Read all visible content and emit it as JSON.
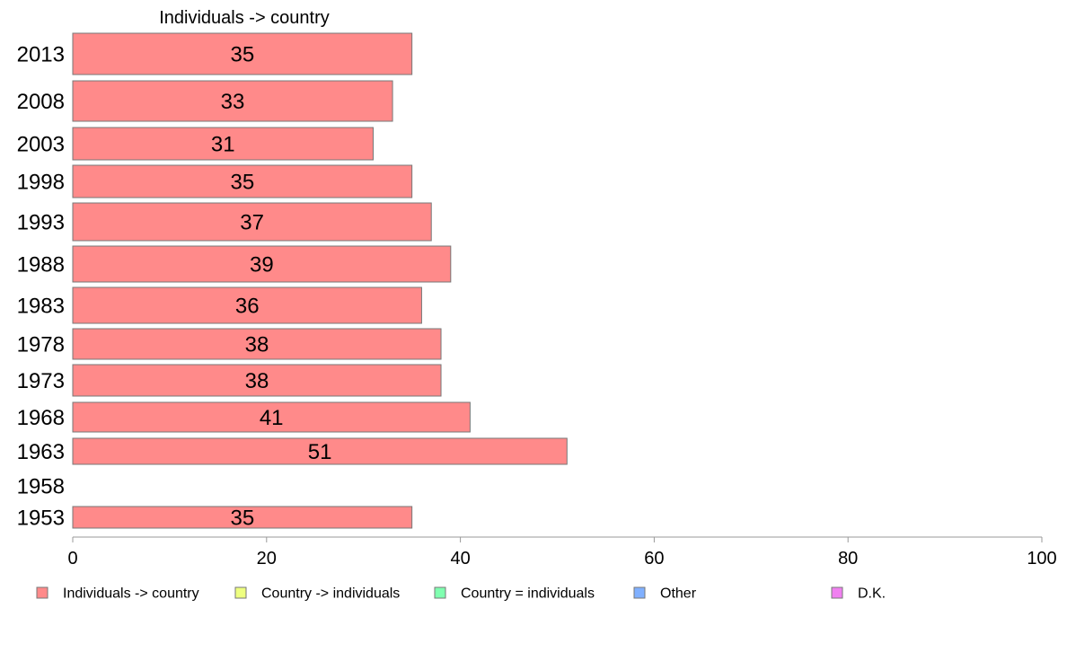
{
  "chart_data": {
    "type": "bar",
    "orientation": "horizontal",
    "title": "Individuals -> country",
    "categories": [
      "2013",
      "2008",
      "2003",
      "1998",
      "1993",
      "1988",
      "1983",
      "1978",
      "1973",
      "1968",
      "1963",
      "1958",
      "1953"
    ],
    "series": [
      {
        "name": "Individuals -> country",
        "color": "#ff8a8a",
        "values": [
          35,
          33,
          31,
          35,
          37,
          39,
          36,
          38,
          38,
          41,
          51,
          null,
          35
        ],
        "labels": [
          "35",
          "33",
          "31",
          "35",
          "37",
          "39",
          "36",
          "38",
          "38",
          "41",
          "51",
          "",
          "35"
        ]
      }
    ],
    "xlim": [
      0,
      100
    ],
    "xticks": [
      "0",
      "20",
      "40",
      "60",
      "80",
      "100"
    ],
    "grid": false,
    "legend": {
      "position": "bottom",
      "items": [
        {
          "label": "Individuals -> country",
          "color": "#ff8a8a"
        },
        {
          "label": "Country -> individuals",
          "color": "#eeff80"
        },
        {
          "label": "Country = individuals",
          "color": "#80ffb0"
        },
        {
          "label": "Other",
          "color": "#80b0ff"
        },
        {
          "label": "D.K.",
          "color": "#f080f0"
        }
      ]
    }
  }
}
